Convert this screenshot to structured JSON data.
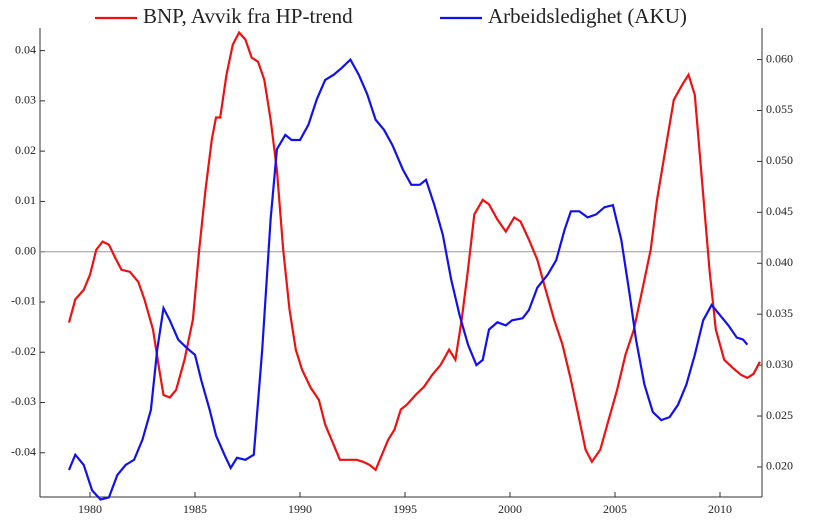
{
  "chart_data": {
    "type": "line",
    "series": [
      {
        "name": "BNP, Avvik fra HP-trend",
        "color": "#ee1111",
        "axis": "y",
        "x": [
          1979.0,
          1979.3,
          1979.7,
          1980.0,
          1980.3,
          1980.6,
          1980.9,
          1981.2,
          1981.5,
          1981.9,
          1982.3,
          1982.6,
          1983.0,
          1983.3,
          1983.5,
          1983.8,
          1984.1,
          1984.5,
          1984.9,
          1985.2,
          1985.5,
          1985.8,
          1986.0,
          1986.2,
          1986.5,
          1986.8,
          1987.1,
          1987.4,
          1987.7,
          1988.0,
          1988.3,
          1988.6,
          1988.9,
          1989.2,
          1989.5,
          1989.8,
          1990.1,
          1990.5,
          1990.9,
          1991.2,
          1991.5,
          1991.9,
          1992.3,
          1992.7,
          1993.0,
          1993.3,
          1993.6,
          1993.9,
          1994.2,
          1994.5,
          1994.8,
          1995.1,
          1995.5,
          1995.9,
          1996.3,
          1996.7,
          1997.1,
          1997.4,
          1997.7,
          1998.0,
          1998.3,
          1998.7,
          1999.0,
          1999.4,
          1999.8,
          2000.2,
          2000.5,
          2000.9,
          2001.3,
          2001.7,
          2002.1,
          2002.5,
          2002.9,
          2003.2,
          2003.6,
          2003.9,
          2004.3,
          2004.7,
          2005.1,
          2005.5,
          2005.9,
          2006.3,
          2006.7,
          2007.0,
          2007.4,
          2007.8,
          2008.2,
          2008.5,
          2008.8,
          2009.1,
          2009.5,
          2009.8,
          2010.2,
          2010.6,
          2011.0,
          2011.3,
          2011.6,
          2011.9
        ],
        "values": [
          -0.0141,
          -0.0095,
          -0.0076,
          -0.0046,
          0.0004,
          0.002,
          0.0014,
          -0.0012,
          -0.0036,
          -0.004,
          -0.006,
          -0.0096,
          -0.0155,
          -0.0235,
          -0.0285,
          -0.029,
          -0.0275,
          -0.0215,
          -0.0135,
          0.0004,
          0.0123,
          0.0223,
          0.0267,
          0.0267,
          0.0352,
          0.0412,
          0.0436,
          0.0422,
          0.0386,
          0.0378,
          0.0342,
          0.0263,
          0.0163,
          0.0004,
          -0.0115,
          -0.0195,
          -0.0235,
          -0.027,
          -0.0295,
          -0.0344,
          -0.0374,
          -0.0414,
          -0.0414,
          -0.0414,
          -0.0418,
          -0.0424,
          -0.0434,
          -0.0404,
          -0.0374,
          -0.0354,
          -0.0314,
          -0.0304,
          -0.0285,
          -0.0269,
          -0.0245,
          -0.0225,
          -0.0195,
          -0.0215,
          -0.0135,
          -0.0036,
          0.0074,
          0.0103,
          0.0094,
          0.0064,
          0.004,
          0.0068,
          0.006,
          0.0024,
          -0.0016,
          -0.0076,
          -0.0135,
          -0.0185,
          -0.0255,
          -0.0314,
          -0.0394,
          -0.0418,
          -0.0394,
          -0.0334,
          -0.0275,
          -0.0205,
          -0.0155,
          -0.0076,
          0.0004,
          0.0103,
          0.0203,
          0.0302,
          0.0332,
          0.0352,
          0.0312,
          0.0163,
          -0.0036,
          -0.0155,
          -0.0215,
          -0.0231,
          -0.0245,
          -0.0251,
          -0.0243,
          -0.0219
        ]
      },
      {
        "name": "Arbeidsledighet (AKU)",
        "color": "#1111ee",
        "axis": "y2",
        "x": [
          1979.0,
          1979.3,
          1979.7,
          1980.1,
          1980.5,
          1980.9,
          1981.3,
          1981.7,
          1982.1,
          1982.5,
          1982.9,
          1983.2,
          1983.5,
          1983.8,
          1984.2,
          1984.6,
          1985.0,
          1985.3,
          1985.7,
          1986.0,
          1986.4,
          1986.7,
          1987.0,
          1987.4,
          1987.8,
          1988.2,
          1988.6,
          1988.9,
          1989.3,
          1989.6,
          1990.0,
          1990.4,
          1990.8,
          1991.2,
          1991.6,
          1992.0,
          1992.4,
          1992.8,
          1993.2,
          1993.6,
          1994.0,
          1994.4,
          1994.9,
          1995.3,
          1995.7,
          1996.0,
          1996.4,
          1996.8,
          1997.2,
          1997.6,
          1998.0,
          1998.4,
          1998.7,
          1999.0,
          1999.4,
          1999.8,
          2000.1,
          2000.6,
          2000.9,
          2001.3,
          2001.8,
          2002.2,
          2002.6,
          2002.9,
          2003.3,
          2003.7,
          2004.1,
          2004.5,
          2004.9,
          2005.3,
          2005.7,
          2006.0,
          2006.4,
          2006.8,
          2007.2,
          2007.6,
          2008.0,
          2008.4,
          2008.8,
          2009.2,
          2009.6,
          2010.0,
          2010.4,
          2010.8,
          2011.1,
          2011.3
        ],
        "values": [
          0.0197,
          0.0212,
          0.0202,
          0.0177,
          0.0168,
          0.017,
          0.0192,
          0.0202,
          0.0207,
          0.0227,
          0.0256,
          0.0315,
          0.0356,
          0.0344,
          0.0325,
          0.0317,
          0.031,
          0.0285,
          0.0256,
          0.0231,
          0.0212,
          0.0199,
          0.0209,
          0.0207,
          0.0212,
          0.0315,
          0.0443,
          0.0512,
          0.0526,
          0.0521,
          0.0521,
          0.0536,
          0.0561,
          0.058,
          0.0585,
          0.0592,
          0.06,
          0.0585,
          0.0566,
          0.0541,
          0.0531,
          0.0516,
          0.0492,
          0.0477,
          0.0477,
          0.0482,
          0.0457,
          0.0428,
          0.0384,
          0.0349,
          0.032,
          0.03,
          0.0305,
          0.0335,
          0.0342,
          0.0339,
          0.0344,
          0.0346,
          0.0354,
          0.0376,
          0.0389,
          0.0403,
          0.0433,
          0.0451,
          0.0451,
          0.0445,
          0.0448,
          0.0455,
          0.0457,
          0.0423,
          0.0369,
          0.0325,
          0.0281,
          0.0254,
          0.0246,
          0.0249,
          0.0261,
          0.0281,
          0.031,
          0.0344,
          0.0359,
          0.0349,
          0.0339,
          0.0327,
          0.0325,
          0.032
        ]
      }
    ],
    "xlim": [
      1977.62,
      2012.0
    ],
    "xticks": [
      1980,
      1985,
      1990,
      1995,
      2000,
      2005,
      2010
    ],
    "ylim": [
      -0.0488,
      0.0445
    ],
    "yticks": [
      -0.04,
      -0.03,
      -0.02,
      -0.01,
      {
        "value": 0,
        "label": "0.00"
      },
      0.01,
      0.02,
      0.03,
      0.04
    ],
    "y2lim": [
      0.01705,
      0.0631
    ],
    "y2ticks": [
      {
        "value": 0.02,
        "label": "0.020"
      },
      0.025,
      {
        "value": 0.03,
        "label": "0.030"
      },
      0.035,
      {
        "value": 0.04,
        "label": "0.040"
      },
      0.045,
      {
        "value": 0.05,
        "label": "0.050"
      },
      0.055,
      {
        "value": 0.06,
        "label": "0.060"
      }
    ],
    "zero_line": true,
    "legend": "top"
  }
}
